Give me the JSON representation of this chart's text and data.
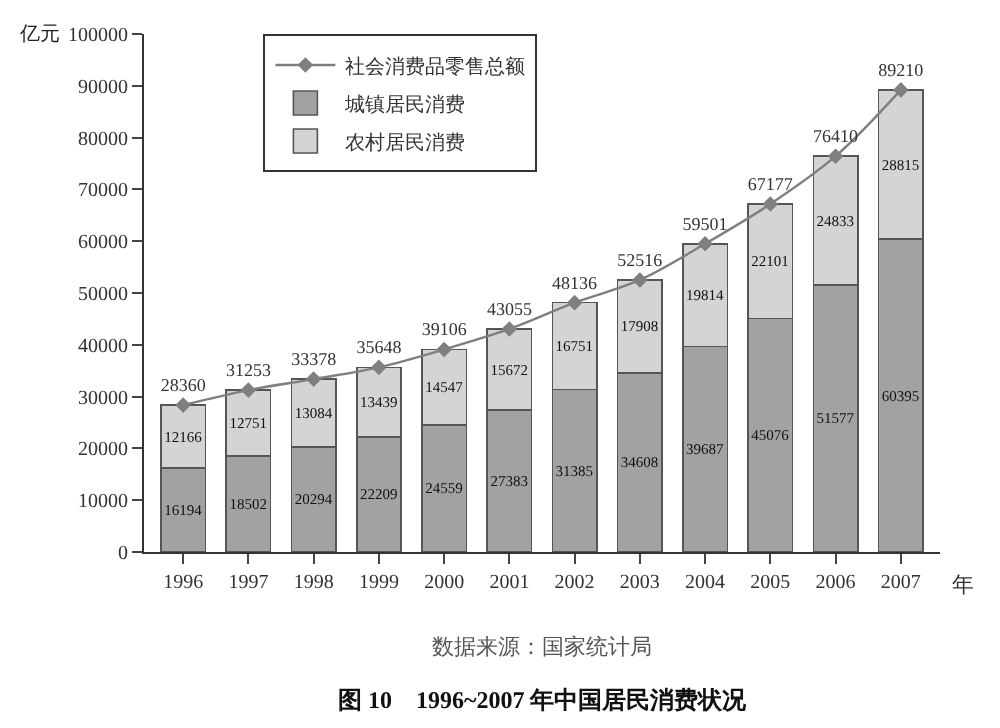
{
  "chart_data": {
    "type": "bar",
    "stacked": true,
    "title": "图 10　1996~2007 年中国居民消费状况",
    "xlabel": "年",
    "ylabel": "亿元",
    "categories": [
      "1996",
      "1997",
      "1998",
      "1999",
      "2000",
      "2001",
      "2002",
      "2003",
      "2004",
      "2005",
      "2006",
      "2007"
    ],
    "series": [
      {
        "name": "城镇居民消费",
        "color": "#a2a2a2",
        "values": [
          16194,
          18502,
          20294,
          22209,
          24559,
          27383,
          31385,
          34608,
          39687,
          45076,
          51577,
          60395
        ]
      },
      {
        "name": "农村居民消费",
        "color": "#d4d4d4",
        "values": [
          12166,
          12751,
          13084,
          13439,
          14547,
          15672,
          16751,
          17908,
          19814,
          22101,
          24833,
          28815
        ]
      },
      {
        "name": "社会消费品零售总额",
        "type": "line",
        "color": "#7f7f7f",
        "marker": "diamond",
        "values": [
          28360,
          31253,
          33378,
          35648,
          39106,
          43055,
          48136,
          52516,
          59501,
          67177,
          76410,
          89210
        ]
      }
    ],
    "data_labels": true,
    "ylim": [
      0,
      100000
    ],
    "yticks": [
      0,
      10000,
      20000,
      30000,
      40000,
      50000,
      60000,
      70000,
      80000,
      90000,
      100000
    ],
    "legend": "top left",
    "annotations": [
      "数据来源：国家统计局"
    ]
  }
}
